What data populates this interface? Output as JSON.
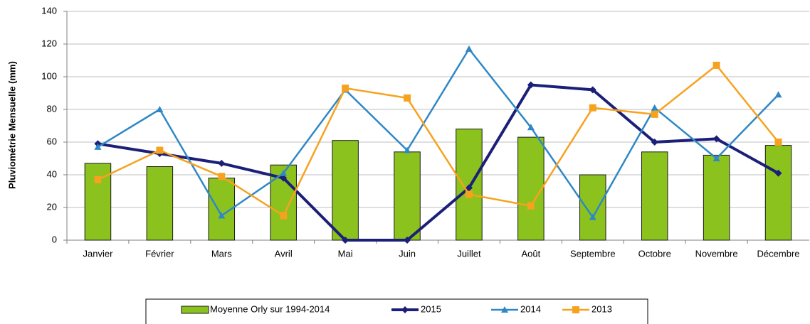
{
  "chart_data": {
    "type": "combo",
    "y_label": "Pluviométrie Mensuelle (mm)",
    "categories": [
      "Janvier",
      "Février",
      "Mars",
      "Avril",
      "Mai",
      "Juin",
      "Juillet",
      "Août",
      "Septembre",
      "Octobre",
      "Novembre",
      "Décembre"
    ],
    "series": [
      {
        "name": "Moyenne Orly sur 1994-2014",
        "type": "bar",
        "color": "#8cc21e",
        "values": [
          47,
          45,
          38,
          46,
          61,
          54,
          68,
          63,
          40,
          54,
          52,
          58
        ]
      },
      {
        "name": "2015",
        "type": "line",
        "marker": "diamond",
        "color": "#1b1f78",
        "values": [
          59,
          53,
          47,
          38,
          0,
          0,
          32,
          95,
          92,
          60,
          62,
          41
        ]
      },
      {
        "name": "2014",
        "type": "line",
        "marker": "triangle",
        "color": "#2f88c6",
        "values": [
          57,
          80,
          15,
          41,
          92,
          55,
          117,
          69,
          14,
          81,
          50,
          89
        ]
      },
      {
        "name": "2013",
        "type": "line",
        "marker": "square",
        "color": "#f7a21f",
        "values": [
          37,
          55,
          39,
          15,
          93,
          87,
          28,
          21,
          81,
          77,
          107,
          60
        ]
      }
    ],
    "ylim": [
      0,
      140
    ],
    "yticks": [
      0,
      20,
      40,
      60,
      80,
      100,
      120,
      140
    ],
    "grid": true,
    "legend": "bottom"
  }
}
